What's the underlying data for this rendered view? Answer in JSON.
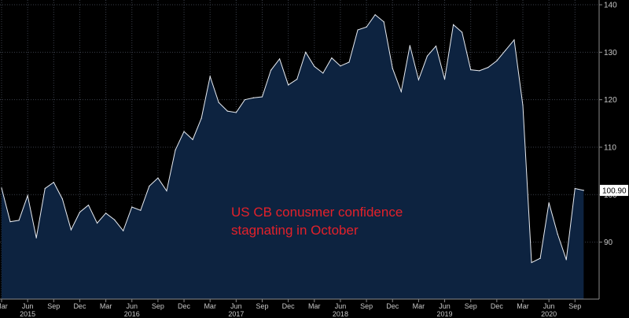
{
  "chart_data": {
    "type": "area",
    "annotation_lines": [
      "US CB conusmer confidence",
      "stagnating in October"
    ],
    "last_value_label": "100.90",
    "ylim": [
      78,
      141
    ],
    "y_ticks": [
      90,
      100,
      110,
      120,
      130,
      140
    ],
    "y_tick_labels": [
      "90",
      "100",
      "110",
      "120",
      "130",
      "140"
    ],
    "month_ticks": [
      {
        "label": "Mar",
        "x": "2015-03"
      },
      {
        "label": "Jun",
        "x": "2015-06"
      },
      {
        "label": "Sep",
        "x": "2015-09"
      },
      {
        "label": "Dec",
        "x": "2015-12"
      },
      {
        "label": "Mar",
        "x": "2016-03"
      },
      {
        "label": "Jun",
        "x": "2016-06"
      },
      {
        "label": "Sep",
        "x": "2016-09"
      },
      {
        "label": "Dec",
        "x": "2016-12"
      },
      {
        "label": "Mar",
        "x": "2017-03"
      },
      {
        "label": "Jun",
        "x": "2017-06"
      },
      {
        "label": "Sep",
        "x": "2017-09"
      },
      {
        "label": "Dec",
        "x": "2017-12"
      },
      {
        "label": "Mar",
        "x": "2018-03"
      },
      {
        "label": "Jun",
        "x": "2018-06"
      },
      {
        "label": "Sep",
        "x": "2018-09"
      },
      {
        "label": "Dec",
        "x": "2018-12"
      },
      {
        "label": "Mar",
        "x": "2019-03"
      },
      {
        "label": "Jun",
        "x": "2019-06"
      },
      {
        "label": "Sep",
        "x": "2019-09"
      },
      {
        "label": "Dec",
        "x": "2019-12"
      },
      {
        "label": "Mar",
        "x": "2020-03"
      },
      {
        "label": "Jun",
        "x": "2020-06"
      },
      {
        "label": "Sep",
        "x": "2020-09"
      }
    ],
    "year_labels": [
      {
        "label": "2015",
        "x": "2015-06"
      },
      {
        "label": "2016",
        "x": "2016-06"
      },
      {
        "label": "2017",
        "x": "2017-06"
      },
      {
        "label": "2018",
        "x": "2018-06"
      },
      {
        "label": "2019",
        "x": "2019-06"
      },
      {
        "label": "2020",
        "x": "2020-06"
      }
    ],
    "x": [
      "2015-03",
      "2015-04",
      "2015-05",
      "2015-06",
      "2015-07",
      "2015-08",
      "2015-09",
      "2015-10",
      "2015-11",
      "2015-12",
      "2016-01",
      "2016-02",
      "2016-03",
      "2016-04",
      "2016-05",
      "2016-06",
      "2016-07",
      "2016-08",
      "2016-09",
      "2016-10",
      "2016-11",
      "2016-12",
      "2017-01",
      "2017-02",
      "2017-03",
      "2017-04",
      "2017-05",
      "2017-06",
      "2017-07",
      "2017-08",
      "2017-09",
      "2017-10",
      "2017-11",
      "2017-12",
      "2018-01",
      "2018-02",
      "2018-03",
      "2018-04",
      "2018-05",
      "2018-06",
      "2018-07",
      "2018-08",
      "2018-09",
      "2018-10",
      "2018-11",
      "2018-12",
      "2019-01",
      "2019-02",
      "2019-03",
      "2019-04",
      "2019-05",
      "2019-06",
      "2019-07",
      "2019-08",
      "2019-09",
      "2019-10",
      "2019-11",
      "2019-12",
      "2020-01",
      "2020-02",
      "2020-03",
      "2020-04",
      "2020-05",
      "2020-06",
      "2020-07",
      "2020-08",
      "2020-09",
      "2020-10"
    ],
    "values": [
      101.4,
      94.3,
      94.6,
      99.8,
      90.9,
      101.3,
      102.6,
      99.1,
      92.6,
      96.3,
      97.8,
      94.0,
      96.1,
      94.7,
      92.4,
      97.4,
      96.7,
      101.8,
      103.5,
      100.8,
      109.4,
      113.3,
      111.6,
      116.1,
      124.9,
      119.4,
      117.6,
      117.3,
      120.0,
      120.4,
      120.6,
      126.2,
      128.6,
      123.1,
      124.3,
      130.0,
      127.0,
      125.6,
      128.8,
      127.1,
      127.9,
      134.7,
      135.3,
      137.9,
      136.4,
      126.6,
      121.7,
      131.4,
      124.2,
      129.2,
      131.3,
      124.3,
      135.8,
      134.2,
      126.3,
      126.1,
      126.8,
      128.2,
      130.4,
      132.6,
      118.8,
      85.7,
      86.6,
      98.3,
      91.7,
      86.3,
      101.3,
      100.9
    ]
  }
}
